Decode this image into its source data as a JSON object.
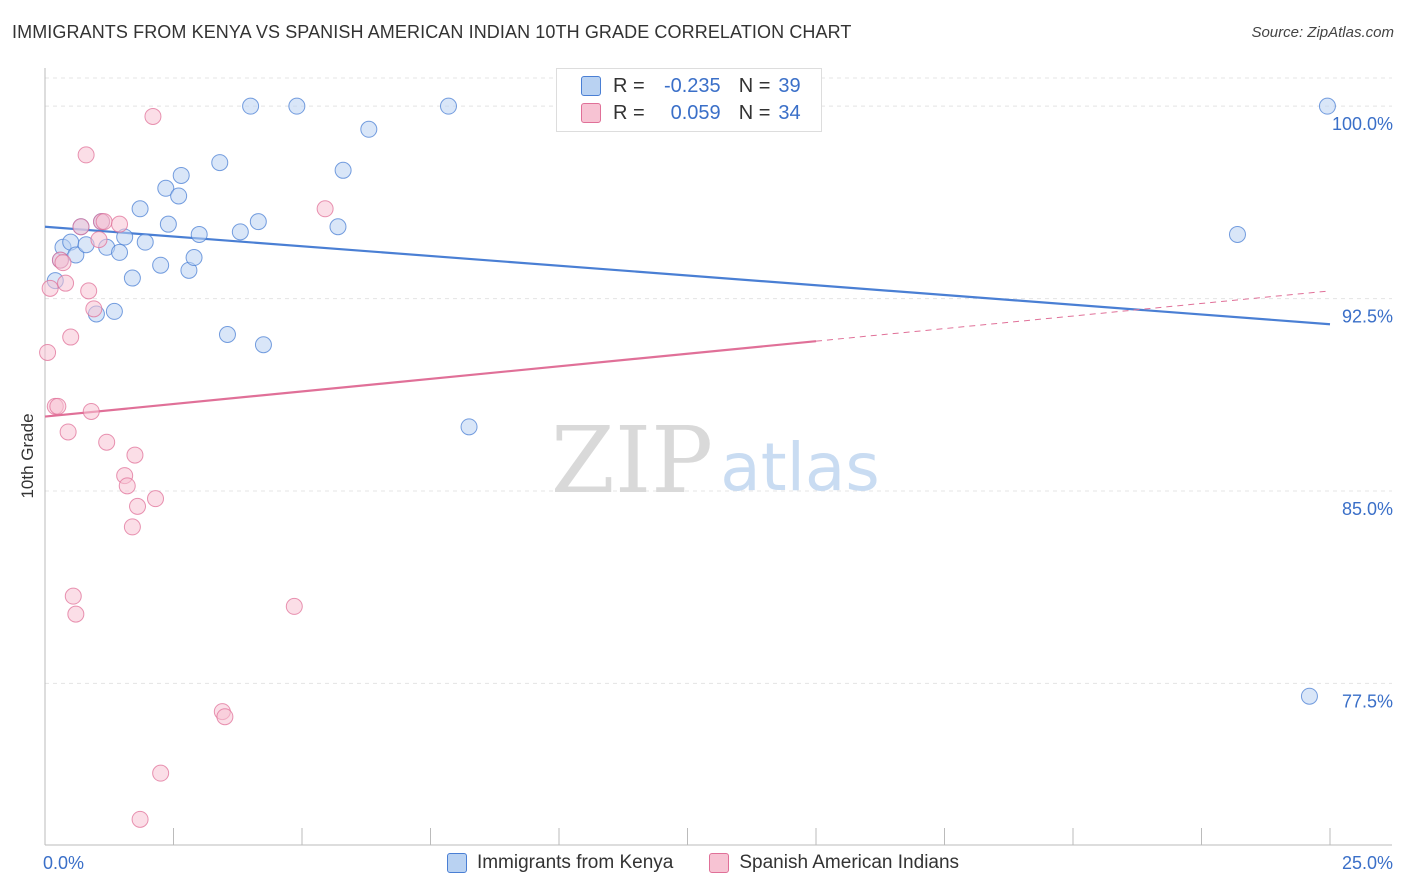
{
  "header": {
    "title": "IMMIGRANTS FROM KENYA VS SPANISH AMERICAN INDIAN 10TH GRADE CORRELATION CHART",
    "source": "Source: ZipAtlas.com"
  },
  "watermark": {
    "zip": "ZIP",
    "atlas": "atlas"
  },
  "legend": {
    "rows": [
      {
        "r_label": "R =",
        "r_value": "-0.235",
        "n_label": "N =",
        "n_value": "39"
      },
      {
        "r_label": "R =",
        "r_value": "0.059",
        "n_label": "N =",
        "n_value": "34"
      }
    ]
  },
  "chart_data": {
    "type": "scatter",
    "title": "IMMIGRANTS FROM KENYA VS SPANISH AMERICAN INDIAN 10TH GRADE CORRELATION CHART",
    "xlabel": "",
    "ylabel": "10th Grade",
    "xlim": [
      0,
      25
    ],
    "ylim": [
      71.2,
      101.8
    ],
    "x_tick_labels": [
      {
        "value": 0,
        "label": "0.0%"
      },
      {
        "value": 25,
        "label": "25.0%"
      }
    ],
    "y_tick_labels": [
      {
        "value": 100,
        "label": "100.0%"
      },
      {
        "value": 92.5,
        "label": "92.5%"
      },
      {
        "value": 85,
        "label": "85.0%"
      },
      {
        "value": 77.5,
        "label": "77.5%"
      }
    ],
    "series": [
      {
        "name": "Immigrants from Kenya",
        "color": "#4a7fd4",
        "fill": "#b9d2f2",
        "trend": {
          "x0": 0,
          "y0": 95.3,
          "x1": 25,
          "y1": 91.5,
          "dashed_from": null
        },
        "points": [
          [
            0.2,
            93.2
          ],
          [
            0.3,
            94.0
          ],
          [
            0.35,
            94.5
          ],
          [
            0.5,
            94.7
          ],
          [
            0.6,
            94.2
          ],
          [
            0.7,
            95.3
          ],
          [
            0.8,
            94.6
          ],
          [
            1.0,
            91.9
          ],
          [
            1.1,
            95.5
          ],
          [
            1.2,
            94.5
          ],
          [
            1.35,
            92.0
          ],
          [
            1.45,
            94.3
          ],
          [
            1.55,
            94.9
          ],
          [
            1.7,
            93.3
          ],
          [
            1.85,
            96.0
          ],
          [
            1.95,
            94.7
          ],
          [
            2.25,
            93.8
          ],
          [
            2.35,
            96.8
          ],
          [
            2.4,
            95.4
          ],
          [
            2.6,
            96.5
          ],
          [
            2.65,
            97.3
          ],
          [
            2.8,
            93.6
          ],
          [
            2.9,
            94.1
          ],
          [
            3.0,
            95.0
          ],
          [
            3.4,
            97.8
          ],
          [
            3.55,
            91.1
          ],
          [
            3.8,
            95.1
          ],
          [
            4.0,
            100.0
          ],
          [
            4.15,
            95.5
          ],
          [
            4.25,
            90.7
          ],
          [
            4.9,
            100.0
          ],
          [
            5.7,
            95.3
          ],
          [
            5.8,
            97.5
          ],
          [
            6.3,
            99.1
          ],
          [
            7.85,
            100.0
          ],
          [
            8.25,
            87.5
          ],
          [
            23.2,
            95.0
          ],
          [
            24.6,
            77.0
          ],
          [
            24.95,
            100.0
          ]
        ]
      },
      {
        "name": "Spanish American Indians",
        "color": "#e07098",
        "fill": "#f7c3d3",
        "trend": {
          "x0": 0,
          "y0": 87.9,
          "x1": 25,
          "y1": 92.8,
          "dashed_from": 15
        },
        "points": [
          [
            0.05,
            90.4
          ],
          [
            0.1,
            92.9
          ],
          [
            0.2,
            88.3
          ],
          [
            0.25,
            88.3
          ],
          [
            0.3,
            94.0
          ],
          [
            0.35,
            93.9
          ],
          [
            0.4,
            93.1
          ],
          [
            0.45,
            87.3
          ],
          [
            0.5,
            91.0
          ],
          [
            0.55,
            80.9
          ],
          [
            0.6,
            80.2
          ],
          [
            0.7,
            95.3
          ],
          [
            0.8,
            98.1
          ],
          [
            0.85,
            92.8
          ],
          [
            0.9,
            88.1
          ],
          [
            0.95,
            92.1
          ],
          [
            1.05,
            94.8
          ],
          [
            1.1,
            95.5
          ],
          [
            1.15,
            95.5
          ],
          [
            1.2,
            86.9
          ],
          [
            1.45,
            95.4
          ],
          [
            1.55,
            85.6
          ],
          [
            1.6,
            85.2
          ],
          [
            1.7,
            83.6
          ],
          [
            1.75,
            86.4
          ],
          [
            1.8,
            84.4
          ],
          [
            1.85,
            72.2
          ],
          [
            2.1,
            99.6
          ],
          [
            2.15,
            84.7
          ],
          [
            2.25,
            74.0
          ],
          [
            3.45,
            76.4
          ],
          [
            3.5,
            76.2
          ],
          [
            4.85,
            80.5
          ],
          [
            5.45,
            96.0
          ]
        ]
      }
    ]
  }
}
